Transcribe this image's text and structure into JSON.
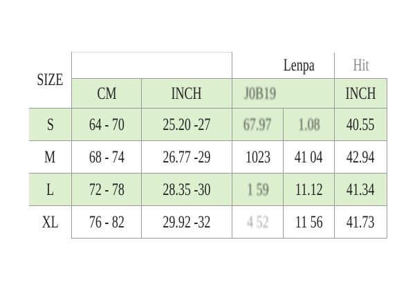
{
  "table": {
    "size_label": "SIZE",
    "header_top": {
      "group1": "Lenpa",
      "group2": "Hit"
    },
    "header_sub": {
      "cm": "CM",
      "inch": "INCH",
      "group1": "J0B19",
      "group2": "INCH"
    },
    "accent_color": "#dcefcf",
    "rows": [
      {
        "size": "S",
        "cm": "64 - 70",
        "inch": "25.20 -27",
        "c4": "67.97",
        "c5": "1.08",
        "c6": "40.55"
      },
      {
        "size": "M",
        "cm": "68 - 74",
        "inch": "26.77 -29",
        "c4": "1023",
        "c5": "41 04",
        "c6": "42.94"
      },
      {
        "size": "L",
        "cm": "72 - 78",
        "inch": "28.35 -30",
        "c4": "1 59",
        "c5": "11.12",
        "c6": "41.34"
      },
      {
        "size": "XL",
        "cm": "76 - 82",
        "inch": "29.92 -32",
        "c4": "4 52",
        "c5": "11 56",
        "c6": "41.73"
      }
    ]
  }
}
